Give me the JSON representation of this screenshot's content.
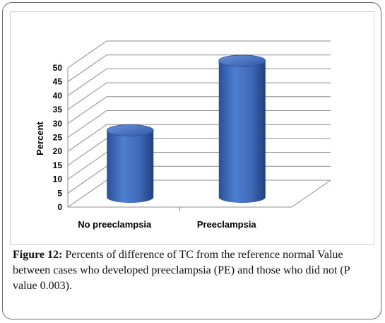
{
  "chart_data": {
    "type": "bar",
    "style": "3d-cylinder",
    "categories": [
      "No preeclampsia",
      "Preeclampsia"
    ],
    "values": [
      24,
      49
    ],
    "ylabel": "Percent",
    "ylim": [
      0,
      50
    ],
    "yticks": [
      "0",
      "5",
      "10",
      "15",
      "20",
      "25",
      "30",
      "35",
      "40",
      "45",
      "50"
    ],
    "grid": true,
    "bar_color": "#4a76c2"
  },
  "caption": {
    "label": "Figure 12:",
    "text": "Percents of difference of TC from the reference normal Value between cases who developed preeclampsia (PE) and those who did not (P value 0.003)."
  }
}
